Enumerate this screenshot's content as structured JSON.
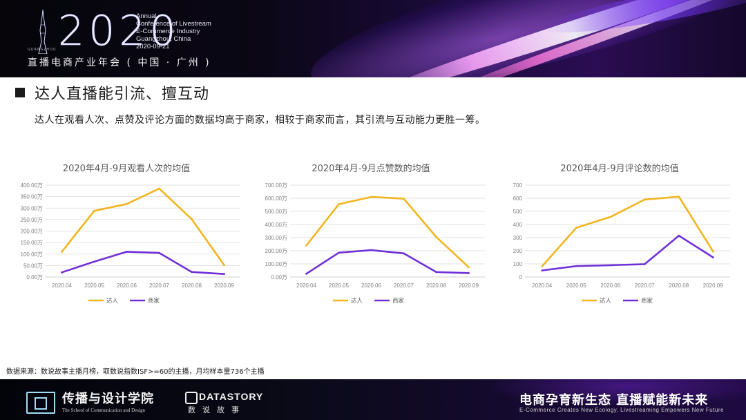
{
  "header": {
    "year": "2020",
    "conference_lines": [
      "Annual",
      "Conference of Livestream",
      "E-Commerce Industry",
      "Guangzhou, China",
      "2020-09-21"
    ],
    "city_tag": "GUANGZHOU",
    "subtitle": "直播电商产业年会 ( 中国 · 广州 )"
  },
  "slide": {
    "title": "达人直播能引流、擅互动",
    "subtitle": "达人在观看人次、点赞及评论方面的数据均高于商家，相较于商家而言，其引流与互动能力更胜一筹。",
    "source": "数据来源：数说故事主播月榜，取数说指数ISF>=60的主播，月均样本量736个主播"
  },
  "colors": {
    "daren": "#f2b51f",
    "merchant": "#7030d8",
    "grid": "#d9d9d9",
    "axis": "#bfbfbf"
  },
  "chart_data": [
    {
      "type": "line",
      "title": "2020年4月-9月观看人次的均值",
      "categories": [
        "2020.04",
        "2020.05",
        "2020.06",
        "2020.07",
        "2020.08",
        "2020.09"
      ],
      "ylim": [
        0,
        400
      ],
      "yticks": [
        0,
        50,
        100,
        150,
        200,
        250,
        300,
        350,
        400
      ],
      "ytick_labels": [
        "0.00万",
        "50.00万",
        "100.00万",
        "150.00万",
        "200.00万",
        "250.00万",
        "300.00万",
        "350.00万",
        "400.00万"
      ],
      "series": [
        {
          "name": "达人",
          "values": [
            110,
            288,
            318,
            385,
            252,
            52
          ]
        },
        {
          "name": "商家",
          "values": [
            20,
            67,
            110,
            105,
            22,
            13
          ]
        }
      ],
      "legend": "bottom"
    },
    {
      "type": "line",
      "title": "2020年4月-9月点赞数的均值",
      "categories": [
        "2020.04",
        "2020.05",
        "2020.06",
        "2020.07",
        "2020.08",
        "2020.09"
      ],
      "ylim": [
        0,
        700
      ],
      "yticks": [
        0,
        100,
        200,
        300,
        400,
        500,
        600,
        700
      ],
      "ytick_labels": [
        "0.00万",
        "100.00万",
        "200.00万",
        "300.00万",
        "400.00万",
        "500.00万",
        "600.00万",
        "700.00万"
      ],
      "series": [
        {
          "name": "达人",
          "values": [
            240,
            555,
            610,
            597,
            305,
            75
          ]
        },
        {
          "name": "商家",
          "values": [
            25,
            185,
            205,
            180,
            38,
            30
          ]
        }
      ],
      "legend": "bottom"
    },
    {
      "type": "line",
      "title": "2020年4月-9月评论数的均值",
      "categories": [
        "2020.04",
        "2020.05",
        "2020.06",
        "2020.07",
        "2020.08",
        "2020.09"
      ],
      "ylim": [
        0,
        700
      ],
      "yticks": [
        0,
        100,
        200,
        300,
        400,
        500,
        600,
        700
      ],
      "ytick_labels": [
        "0",
        "100",
        "200",
        "300",
        "400",
        "500",
        "600",
        "700"
      ],
      "series": [
        {
          "name": "达人",
          "values": [
            82,
            375,
            458,
            590,
            612,
            195
          ]
        },
        {
          "name": "商家",
          "values": [
            50,
            83,
            90,
            98,
            315,
            150
          ]
        }
      ],
      "legend": "bottom"
    }
  ],
  "footer": {
    "school_cn": "传播与设计学院",
    "school_en": "The School of Communication and Design",
    "datastory_name": "DATASTORY",
    "datastory_cn": "数说故事",
    "slogan_cn": "电商孕育新生态 直播赋能新未来",
    "slogan_en": "E-Commerce Creates New Ecology, Livestreaming Empowers New Future"
  }
}
